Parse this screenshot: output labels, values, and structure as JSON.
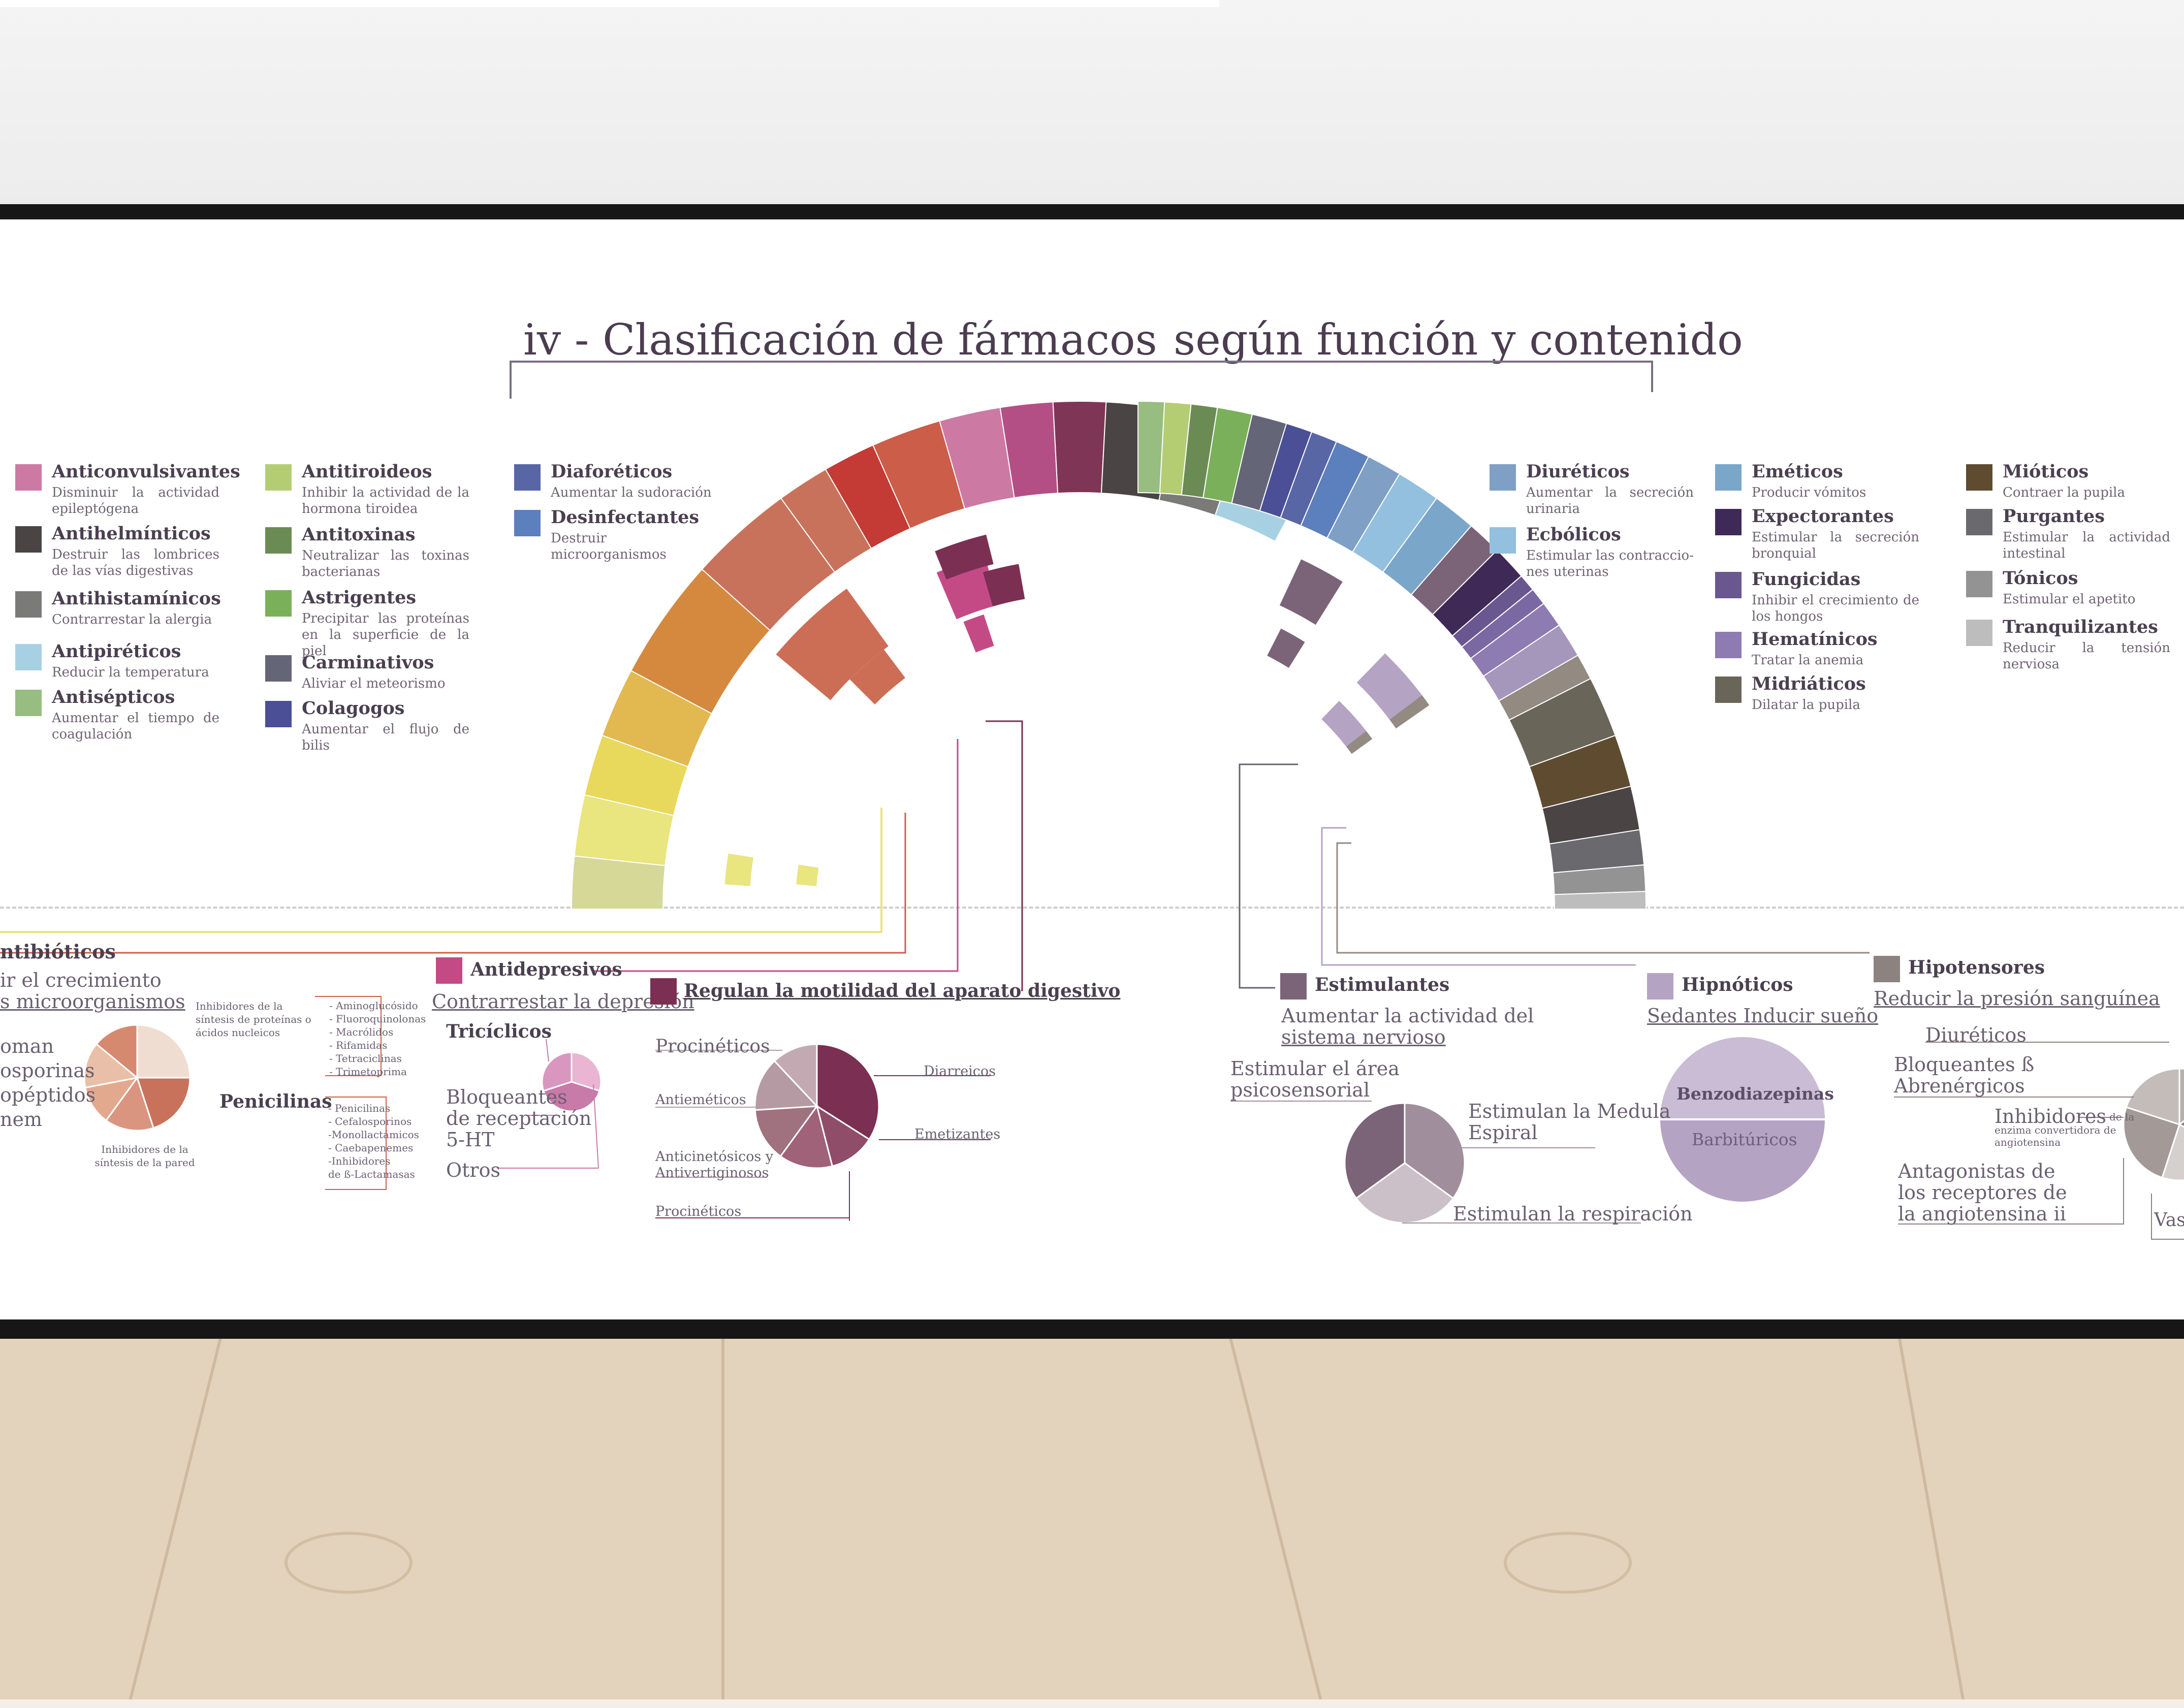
{
  "title": {
    "left": "iv -  Clasificación de fármacos",
    "right": "según función y contenido"
  },
  "colors": {
    "Anticonvulsivantes": "#cc7aa4",
    "Antihelmínticos": "#4a4444",
    "Antihistamínicos": "#7a7b78",
    "Antipiréticos": "#a8d0e3",
    "Antisépticos": "#97bd80",
    "Antitiroideos": "#b4cd73",
    "Antitoxinas": "#6b8b54",
    "Astrigentes": "#7ab05a",
    "Carminativos": "#646677",
    "Colagogos": "#4b4f96",
    "Diaforéticos": "#5866a6",
    "Desinfectantes": "#5c7fbd",
    "Diuréticos": "#7f9fc5",
    "Ecbólicos": "#93c0de",
    "Eméticos": "#7aa6c9",
    "Expectorantes": "#3f2a57",
    "Fungicidas": "#6a5790",
    "Hematínicos": "#8e7bb1",
    "Midriáticos": "#6a6559",
    "Mióticos": "#5f4c30",
    "Purgantes": "#6a6a6e",
    "Tónicos": "#939393",
    "Tranquilizantes": "#bdbdbd",
    "Antidepresivos": "#c44a86",
    "Digestivo": "#7b2f52",
    "Estimulantes": "#7b6478",
    "Hipnóticos": "#b5a3c4",
    "Hipotensores": "#8c8280"
  },
  "legend_left": [
    {
      "name": "Anticonvulsivantes",
      "desc": "Disminuir la actividad epileptógena"
    },
    {
      "name": "Antihelmínticos",
      "desc": "Destruir las lombrices de las vías digestivas"
    },
    {
      "name": "Antihistamínicos",
      "desc": "Contrarrestar la alergia"
    },
    {
      "name": "Antipiréticos",
      "desc": "Reducir la temperatura"
    },
    {
      "name": "Antisépticos",
      "desc": "Aumentar el tiempo de coagulación"
    }
  ],
  "legend_left2": [
    {
      "name": "Antitiroideos",
      "desc": "Inhibir la actividad de la hormona tiroidea"
    },
    {
      "name": "Antitoxinas",
      "desc": "Neutralizar las toxinas bacterianas"
    },
    {
      "name": "Astrigentes",
      "desc": "Precipitar las proteínas en la superficie de la piel"
    },
    {
      "name": "Carminativos",
      "desc": "Aliviar el meteorismo"
    },
    {
      "name": "Colagogos",
      "desc": "Aumentar el flujo de bilis"
    }
  ],
  "legend_left3": [
    {
      "name": "Diaforéticos",
      "desc": "Aumentar la sudoración"
    },
    {
      "name": "Desinfectantes",
      "desc": "Destruir microorganismos"
    }
  ],
  "legend_right1": [
    {
      "name": "Diuréticos",
      "desc": "Aumentar la secreción urinaria"
    },
    {
      "name": "Ecbólicos",
      "desc": "Estimular las contraccio-nes uterinas"
    }
  ],
  "legend_right2": [
    {
      "name": "Eméticos",
      "desc": "Producir vómitos"
    },
    {
      "name": "Expectorantes",
      "desc": "Estimular la secreción bronquial"
    },
    {
      "name": "Fungicidas",
      "desc": "Inhibir el crecimiento de los hongos"
    },
    {
      "name": "Hematínicos",
      "desc": "Tratar la anemia"
    },
    {
      "name": "Midriáticos",
      "desc": "Dilatar la pupila"
    }
  ],
  "legend_right3": [
    {
      "name": "Mióticos",
      "desc": "Contraer la pupila"
    },
    {
      "name": "Purgantes",
      "desc": "Estimular la actividad intestinal"
    },
    {
      "name": "Tónicos",
      "desc": "Estimular el apetito"
    },
    {
      "name": "Tranquilizantes",
      "desc": "Reducir la tensión nerviosa"
    }
  ],
  "antibioticos": {
    "title": "ntibióticos",
    "sub1": "ir el crecimiento",
    "sub2": "s microorganismos",
    "items": [
      "oman",
      "osporinas",
      "opéptidos",
      "nem"
    ],
    "note1": "Inhibidores de la síntesis de proteínas o ácidos nucleicos",
    "list1": [
      "- Aminoglucósido",
      "- Fluoroquinolonas",
      "- Macrólidos",
      "- Rifamidas",
      "- Tetraciclinas",
      "- Trimetoprima"
    ],
    "note2": "Inhibidores de la síntesis de la pared",
    "penicilinas": "Penicilinas",
    "list2": [
      "- Penicilinas",
      "- Cefalosporinos",
      "-Monollactámicos",
      "- Caebapenemes",
      "-Inhibidores",
      "de ß-Lactamasas"
    ]
  },
  "antidepresivos": {
    "title": "Antidepresivos",
    "sub": "Contrarrestar la depresión",
    "triciclicos": "Tricíclicos",
    "bloq1": "Bloqueantes",
    "bloq2": "de receptación",
    "bloq3": "5-HT",
    "otros": "Otros"
  },
  "digestivo": {
    "title": "Regulan la motilidad del aparato digestivo",
    "items": [
      "Procinéticos",
      "Antieméticos",
      "Anticinetósicos y",
      "Antivertiginosos",
      "Procinéticos",
      "Diarreicos",
      "Emetizantes"
    ]
  },
  "estimulantes": {
    "title": "Estimulantes",
    "sub1": "Aumentar la actividad del",
    "sub2": "sistema nervioso",
    "a1": "Estimular el área",
    "a2": "psicosensorial",
    "b1": "Estimulan la Medula",
    "b2": "Espiral",
    "c": "Estimulan la respiración"
  },
  "hipnoticos": {
    "title": "Hipnóticos",
    "sub": "Sedantes Inducir sueño",
    "benzo": "Benzodiazepinas",
    "barb": "Barbitúricos"
  },
  "hipotensores": {
    "title": "Hipotensores",
    "sub": "Reducir la presión sanguínea",
    "diur": "Diuréticos",
    "bloq1": "Bloqueantes ß",
    "bloq2": "Abrenérgicos",
    "inh1": "Inhibidores",
    "inh1b": "de la",
    "inh2": "enzima convertidora de",
    "inh3": "angiotensina",
    "ant1": "Antagonistas de",
    "ant2": "los receptores de",
    "ant3": "la angiotensina ii",
    "vaso": "Vaso"
  }
}
